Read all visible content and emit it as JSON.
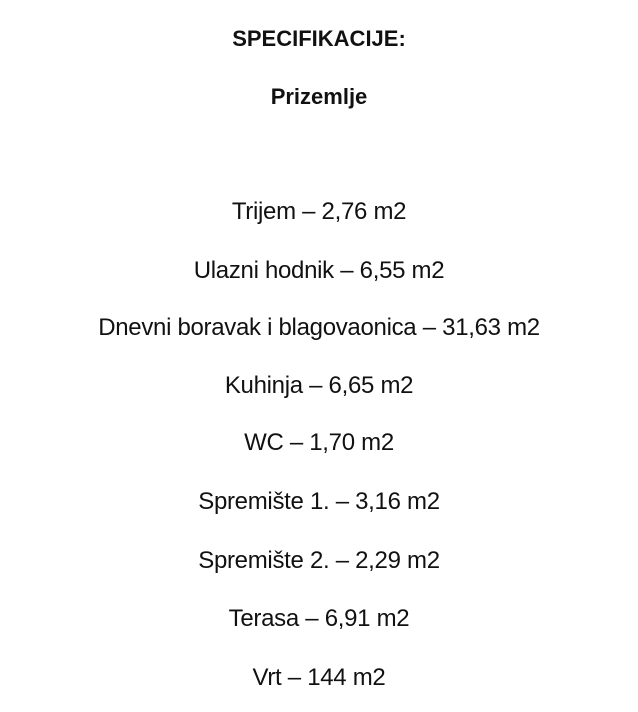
{
  "document": {
    "title": "SPECIFIKACIJE:",
    "subtitle": "Prizemlje",
    "items": [
      "Trijem – 2,76 m2",
      "Ulazni hodnik – 6,55 m2",
      "Dnevni boravak i blagovaonica – 31,63 m2",
      "Kuhinja – 6,65 m2",
      "WC – 1,70 m2",
      "Spremište 1. – 3,16 m2",
      "Spremište 2. – 2,29 m2",
      "Terasa – 6,91 m2",
      "Vrt – 144 m2"
    ]
  }
}
